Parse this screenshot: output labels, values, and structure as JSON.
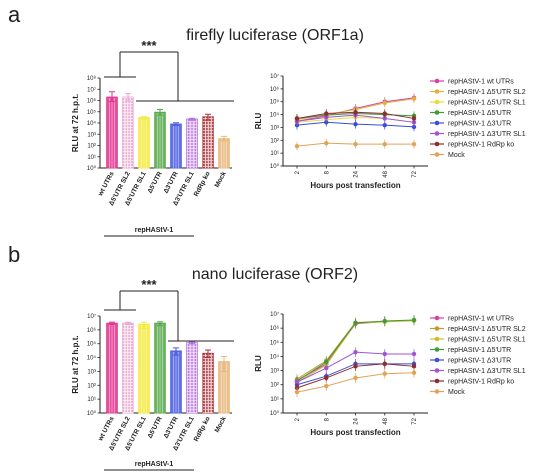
{
  "figure": {
    "panel_a_letter": "a",
    "panel_b_letter": "b",
    "panel_a_title": "firefly luciferase (ORF1a)",
    "panel_b_title": "nano luciferase (ORF2)"
  },
  "chart_data": [
    {
      "id": "a-bar",
      "type": "bar",
      "ylabel": "RLU at 72 h.p.t.",
      "ylim": [
        1,
        100000000
      ],
      "yscale": "log",
      "yticks": [
        "10⁰",
        "10¹",
        "10²",
        "10³",
        "10⁴",
        "10⁵",
        "10⁶",
        "10⁷",
        "10⁸"
      ],
      "categories": [
        "wt UTRs",
        "Δ5'UTR SL2",
        "Δ5'UTR SL1",
        "Δ5'UTR",
        "Δ3'UTR",
        "Δ3'UTR SL1",
        "RdRp ko",
        "Mock"
      ],
      "values": [
        2000000,
        2000000,
        30000,
        90000,
        8000,
        22000,
        35000,
        400
      ],
      "errors": [
        [
          800000,
          6000000
        ],
        [
          900000,
          4000000
        ],
        [
          24000,
          36000
        ],
        [
          50000,
          160000
        ],
        [
          6000,
          10500
        ],
        [
          18000,
          26000
        ],
        [
          18000,
          60000
        ],
        [
          250,
          650
        ]
      ],
      "colors": [
        "#e2338f",
        "#e8a6cf",
        "#f2ea3c",
        "#57a84a",
        "#4a5ce0",
        "#b068dc",
        "#a8323a",
        "#e7b77a"
      ],
      "hatch": [
        false,
        true,
        false,
        false,
        false,
        true,
        true,
        false
      ],
      "group_label": "repHAStV-1",
      "significance": "***"
    },
    {
      "id": "a-line",
      "type": "line",
      "xlabel": "Hours post transfection",
      "ylabel": "RLU",
      "yscale": "log",
      "ylim": [
        1,
        10000000
      ],
      "yticks": [
        "10⁰",
        "10¹",
        "10²",
        "10³",
        "10⁴",
        "10⁵",
        "10⁶",
        "10⁷"
      ],
      "x": [
        "2",
        "8",
        "24",
        "48",
        "72"
      ],
      "legend_position": "right",
      "series": [
        {
          "name": "repHAStV-1 wt UTRs",
          "color": "#d641a5",
          "values": [
            3000,
            8000,
            30000,
            100000,
            200000
          ]
        },
        {
          "name": "repHAStV-1 Δ5'UTR SL2",
          "color": "#e0b23c",
          "values": [
            4000,
            10000,
            25000,
            80000,
            170000
          ]
        },
        {
          "name": "repHAStV-1 Δ5'UTR SL1",
          "color": "#e8dc36",
          "values": [
            2500,
            4000,
            6000,
            5000,
            2500
          ]
        },
        {
          "name": "repHAStV-1 Δ5'UTR",
          "color": "#3f9a3a",
          "values": [
            5000,
            9000,
            12000,
            10000,
            8000
          ]
        },
        {
          "name": "repHAStV-1 Δ3'UTR",
          "color": "#3b4ed6",
          "values": [
            1500,
            2500,
            1800,
            1500,
            1100
          ]
        },
        {
          "name": "repHAStV-1 Δ3'UTR SL1",
          "color": "#9f55d6",
          "values": [
            3000,
            6000,
            9000,
            5000,
            2500
          ]
        },
        {
          "name": "repHAStV-1 RdRp ko",
          "color": "#8e2d30",
          "values": [
            5000,
            12000,
            15000,
            12000,
            5000
          ]
        },
        {
          "name": "Mock",
          "color": "#e0a458",
          "values": [
            35,
            60,
            50,
            50,
            50
          ]
        }
      ]
    },
    {
      "id": "b-bar",
      "type": "bar",
      "ylabel": "RLU at 72 h.p.t.",
      "ylim": [
        1,
        10000000
      ],
      "yscale": "log",
      "yticks": [
        "10⁰",
        "10¹",
        "10²",
        "10³",
        "10⁴",
        "10⁵",
        "10⁶",
        "10⁷"
      ],
      "categories": [
        "wt UTRs",
        "Δ5'UTR SL2",
        "Δ5'UTR SL1",
        "Δ5'UTR",
        "Δ3'UTR",
        "Δ3'UTR SL1",
        "RdRp ko",
        "Mock"
      ],
      "values": [
        3000000,
        3000000,
        2500000,
        3000000,
        30000,
        120000,
        20000,
        5000
      ],
      "errors": [
        [
          2500000,
          3600000
        ],
        [
          2500000,
          3500000
        ],
        [
          1300000,
          3500000
        ],
        [
          2000000,
          3800000
        ],
        [
          15000,
          50000
        ],
        [
          100000,
          140000
        ],
        [
          10000,
          35000
        ],
        [
          1000,
          12000
        ]
      ],
      "colors": [
        "#e2338f",
        "#e8a6cf",
        "#f2ea3c",
        "#57a84a",
        "#4a5ce0",
        "#b068dc",
        "#a8323a",
        "#e7b77a"
      ],
      "hatch": [
        false,
        true,
        false,
        false,
        false,
        true,
        true,
        false
      ],
      "group_label": "repHAStV-1",
      "significance": "***"
    },
    {
      "id": "b-line",
      "type": "line",
      "xlabel": "Hours post transfection",
      "ylabel": "RLU",
      "yscale": "log",
      "ylim": [
        1,
        10000000
      ],
      "yticks": [
        "10⁰",
        "10¹",
        "10²",
        "10³",
        "10⁴",
        "10⁵",
        "10⁶",
        "10⁷"
      ],
      "x": [
        "2",
        "8",
        "24",
        "48",
        "72"
      ],
      "legend_position": "right",
      "series": [
        {
          "name": "repHAStV-1 wt UTRs",
          "color": "#d641a5",
          "values": [
            200,
            3000,
            2000000,
            3000000,
            3500000
          ]
        },
        {
          "name": "repHAStV-1 Δ5'UTR SL2",
          "color": "#c49a2a",
          "values": [
            250,
            5000,
            2500000,
            3000000,
            3500000
          ]
        },
        {
          "name": "repHAStV-1 Δ5'UTR SL1",
          "color": "#cbbf2e",
          "values": [
            150,
            2500,
            2200000,
            2800000,
            3300000
          ]
        },
        {
          "name": "repHAStV-1 Δ5'UTR",
          "color": "#3f9a3a",
          "values": [
            180,
            4000,
            2300000,
            3200000,
            3800000
          ]
        },
        {
          "name": "repHAStV-1 Δ3'UTR",
          "color": "#3b4ed6",
          "values": [
            100,
            400,
            3000,
            3000,
            3000
          ]
        },
        {
          "name": "repHAStV-1 Δ3'UTR SL1",
          "color": "#9f55d6",
          "values": [
            150,
            1500,
            20000,
            15000,
            15000
          ]
        },
        {
          "name": "repHAStV-1 RdRp ko",
          "color": "#8e2d30",
          "values": [
            60,
            300,
            2000,
            3000,
            2000
          ]
        },
        {
          "name": "Mock",
          "color": "#e0a458",
          "values": [
            30,
            80,
            300,
            600,
            700
          ]
        }
      ]
    }
  ]
}
